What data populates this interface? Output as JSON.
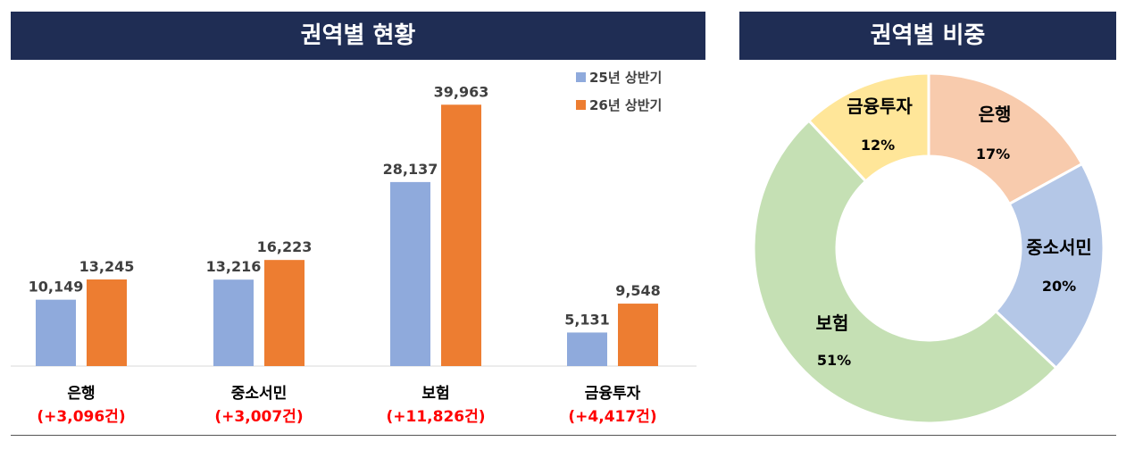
{
  "banners": {
    "left": "권역별 현황",
    "right": "권역별 비중"
  },
  "chart_data": [
    {
      "type": "bar",
      "title": "권역별 현황",
      "categories": [
        "은행",
        "중소서민",
        "보험",
        "금융투자"
      ],
      "category_changes": [
        "(+3,096건)",
        "(+3,007건)",
        "(+11,826건)",
        "(+4,417건)"
      ],
      "series": [
        {
          "name": "25년 상반기",
          "color": "#8faadc",
          "values": [
            10149,
            13216,
            28137,
            5131
          ],
          "labels": [
            "10,149",
            "13,216",
            "28,137",
            "5,131"
          ]
        },
        {
          "name": "26년 상반기",
          "color": "#ed7d31",
          "values": [
            13245,
            16223,
            39963,
            9548
          ],
          "labels": [
            "13,245",
            "16,223",
            "39,963",
            "9,548"
          ]
        }
      ],
      "ylim": [
        0,
        40000
      ],
      "grid": false,
      "legend": "top-right",
      "change_color": "#ff0000"
    },
    {
      "type": "pie",
      "title": "권역별 비중",
      "donut": true,
      "slices": [
        {
          "label": "은행",
          "value": 17,
          "text": "17%",
          "color": "#f8cbad"
        },
        {
          "label": "중소서민",
          "value": 20,
          "text": "20%",
          "color": "#b4c7e7"
        },
        {
          "label": "보험",
          "value": 51,
          "text": "51%",
          "color": "#c5e0b4"
        },
        {
          "label": "금융투자",
          "value": 12,
          "text": "12%",
          "color": "#ffe699"
        }
      ]
    }
  ]
}
